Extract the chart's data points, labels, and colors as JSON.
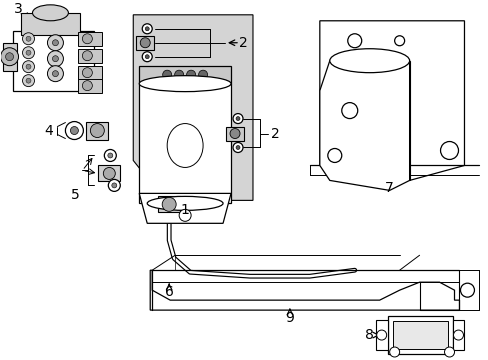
{
  "bg_color": "#ffffff",
  "lc": "#000000",
  "shaded": "#d4d4d4",
  "figsize": [
    4.89,
    3.6
  ],
  "dpi": 100,
  "xlim": [
    0,
    489
  ],
  "ylim": [
    0,
    360
  ]
}
